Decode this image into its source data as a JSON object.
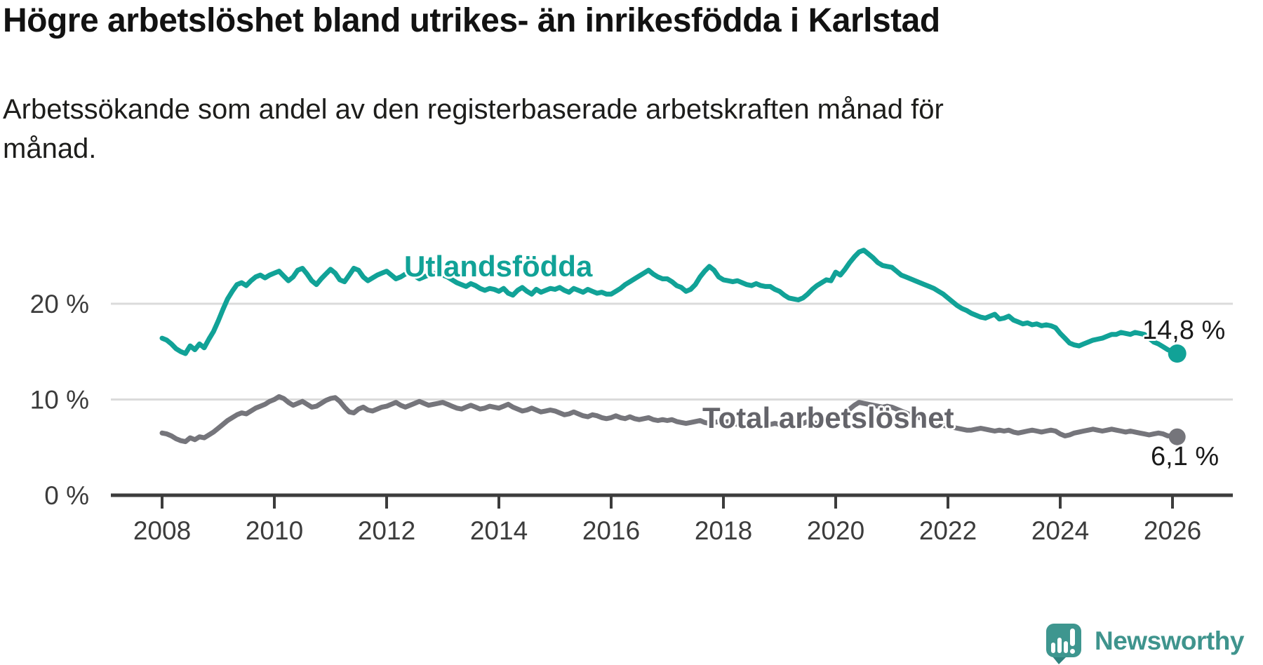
{
  "title": "Högre arbetslöshet bland utrikes- än inrikesfödda i Karlstad",
  "subtitle_line1": "Arbetssökande som andel av den registerbaserade arbetskraften månad för",
  "subtitle_line2": "månad.",
  "chart_data": {
    "type": "line",
    "title": "Högre arbetslöshet bland utrikes- än inrikesfödda i Karlstad",
    "x_unit": "month",
    "x_range": [
      "2008-01",
      "2026-02"
    ],
    "ylim": [
      0,
      26.5
    ],
    "grid": "horizontal-only",
    "grid_color": "#dbdbdb",
    "axis_color": "#3c3c3c",
    "tick_label_color": "#3c3c3c",
    "y_ticks": [
      {
        "value": 0,
        "label": "0 %"
      },
      {
        "value": 10,
        "label": "10 %"
      },
      {
        "value": 20,
        "label": "20 %"
      }
    ],
    "x_ticks": [
      {
        "year": 2008,
        "label": "2008"
      },
      {
        "year": 2010,
        "label": "2010"
      },
      {
        "year": 2012,
        "label": "2012"
      },
      {
        "year": 2014,
        "label": "2014"
      },
      {
        "year": 2016,
        "label": "2016"
      },
      {
        "year": 2018,
        "label": "2018"
      },
      {
        "year": 2020,
        "label": "2020"
      },
      {
        "year": 2022,
        "label": "2022"
      },
      {
        "year": 2024,
        "label": "2024"
      },
      {
        "year": 2026,
        "label": "2026"
      }
    ],
    "series": [
      {
        "name": "Utlandsfödda",
        "color": "#11a297",
        "end_label": "14,8 %",
        "last_value": 14.8,
        "values": [
          16.4,
          16.2,
          15.8,
          15.3,
          15.0,
          14.8,
          15.6,
          15.2,
          15.8,
          15.4,
          16.3,
          17.1,
          18.2,
          19.4,
          20.5,
          21.3,
          22.0,
          22.2,
          21.9,
          22.4,
          22.8,
          23.0,
          22.7,
          23.0,
          23.2,
          23.4,
          22.9,
          22.4,
          22.8,
          23.5,
          23.7,
          23.1,
          22.4,
          22.0,
          22.6,
          23.1,
          23.6,
          23.2,
          22.5,
          22.3,
          23.0,
          23.7,
          23.5,
          22.8,
          22.4,
          22.7,
          23.0,
          23.2,
          23.4,
          23.0,
          22.6,
          22.8,
          23.1,
          23.3,
          22.9,
          22.6,
          22.8,
          23.0,
          23.2,
          23.0,
          23.0,
          22.8,
          22.5,
          22.2,
          22.0,
          21.8,
          22.1,
          21.9,
          21.6,
          21.4,
          21.6,
          21.5,
          21.3,
          21.6,
          21.1,
          20.9,
          21.4,
          21.7,
          21.3,
          21.0,
          21.5,
          21.2,
          21.4,
          21.6,
          21.5,
          21.7,
          21.4,
          21.2,
          21.6,
          21.4,
          21.2,
          21.5,
          21.3,
          21.1,
          21.2,
          21.0,
          21.0,
          21.3,
          21.6,
          22.0,
          22.3,
          22.6,
          22.9,
          23.2,
          23.5,
          23.1,
          22.8,
          22.6,
          22.6,
          22.3,
          21.9,
          21.7,
          21.3,
          21.5,
          22.0,
          22.8,
          23.4,
          23.9,
          23.5,
          22.8,
          22.5,
          22.4,
          22.3,
          22.4,
          22.2,
          22.0,
          21.9,
          22.1,
          21.9,
          21.8,
          21.8,
          21.5,
          21.3,
          20.9,
          20.6,
          20.5,
          20.4,
          20.6,
          21.0,
          21.5,
          21.9,
          22.2,
          22.5,
          22.4,
          23.3,
          23.0,
          23.6,
          24.3,
          24.9,
          25.4,
          25.6,
          25.2,
          24.8,
          24.3,
          24.0,
          23.9,
          23.8,
          23.4,
          23.0,
          22.8,
          22.6,
          22.4,
          22.2,
          22.0,
          21.8,
          21.6,
          21.3,
          21.0,
          20.6,
          20.2,
          19.8,
          19.5,
          19.3,
          19.0,
          18.8,
          18.6,
          18.5,
          18.7,
          18.9,
          18.4,
          18.5,
          18.7,
          18.3,
          18.1,
          17.9,
          18.0,
          17.8,
          17.9,
          17.7,
          17.8,
          17.7,
          17.5,
          16.9,
          16.4,
          15.9,
          15.7,
          15.6,
          15.8,
          16.0,
          16.2,
          16.3,
          16.4,
          16.6,
          16.8,
          16.8,
          17.0,
          16.9,
          16.8,
          17.0,
          16.9,
          16.8,
          16.4,
          16.0,
          15.8,
          15.5,
          15.2,
          15.0,
          14.8
        ]
      },
      {
        "name": "Total arbetslöshet",
        "color": "#75757b",
        "end_label": "6,1 %",
        "last_value": 6.1,
        "values": [
          6.5,
          6.4,
          6.2,
          5.9,
          5.7,
          5.6,
          6.0,
          5.8,
          6.1,
          6.0,
          6.3,
          6.6,
          7.0,
          7.4,
          7.8,
          8.1,
          8.4,
          8.6,
          8.5,
          8.8,
          9.1,
          9.3,
          9.5,
          9.8,
          10.0,
          10.3,
          10.1,
          9.7,
          9.4,
          9.6,
          9.8,
          9.5,
          9.2,
          9.3,
          9.6,
          9.9,
          10.1,
          10.2,
          9.8,
          9.2,
          8.7,
          8.6,
          9.0,
          9.2,
          8.9,
          8.8,
          9.0,
          9.2,
          9.3,
          9.5,
          9.7,
          9.4,
          9.2,
          9.4,
          9.6,
          9.8,
          9.6,
          9.4,
          9.5,
          9.6,
          9.7,
          9.5,
          9.3,
          9.1,
          9.0,
          9.2,
          9.4,
          9.2,
          9.0,
          9.1,
          9.3,
          9.2,
          9.1,
          9.3,
          9.5,
          9.2,
          9.0,
          8.8,
          8.9,
          9.1,
          8.9,
          8.7,
          8.8,
          8.9,
          8.8,
          8.6,
          8.4,
          8.5,
          8.7,
          8.5,
          8.3,
          8.2,
          8.4,
          8.3,
          8.1,
          8.0,
          8.1,
          8.3,
          8.1,
          8.0,
          8.2,
          8.0,
          7.9,
          8.0,
          8.1,
          7.9,
          7.8,
          7.9,
          7.8,
          7.9,
          7.7,
          7.6,
          7.5,
          7.6,
          7.7,
          7.8,
          7.6,
          7.5,
          7.6,
          7.7,
          7.6,
          7.7,
          7.5,
          7.4,
          7.3,
          7.4,
          7.5,
          7.4,
          7.2,
          7.3,
          7.4,
          7.5,
          7.4,
          7.3,
          7.2,
          7.3,
          7.4,
          7.5,
          7.7,
          7.6,
          7.5,
          7.6,
          7.7,
          7.8,
          7.9,
          8.0,
          8.4,
          9.0,
          9.4,
          9.7,
          9.6,
          9.5,
          9.4,
          9.3,
          9.2,
          9.3,
          9.2,
          9.0,
          8.8,
          8.6,
          8.4,
          8.2,
          8.1,
          8.0,
          7.8,
          7.6,
          7.4,
          7.3,
          7.2,
          7.1,
          7.0,
          6.9,
          6.8,
          6.8,
          6.9,
          7.0,
          6.9,
          6.8,
          6.7,
          6.8,
          6.7,
          6.8,
          6.6,
          6.5,
          6.6,
          6.7,
          6.8,
          6.7,
          6.6,
          6.7,
          6.8,
          6.7,
          6.4,
          6.2,
          6.3,
          6.5,
          6.6,
          6.7,
          6.8,
          6.9,
          6.8,
          6.7,
          6.8,
          6.9,
          6.8,
          6.7,
          6.6,
          6.7,
          6.6,
          6.5,
          6.4,
          6.3,
          6.4,
          6.5,
          6.4,
          6.2,
          6.2,
          6.1
        ]
      }
    ]
  },
  "annotations": {
    "foreign_end": "14,8 %",
    "total_end": "6,1 %"
  },
  "series_labels": {
    "foreign": "Utlandsfödda",
    "total": "Total arbetslöshet"
  },
  "logo": {
    "text": "Newsworthy",
    "color": "#3f948d",
    "icon": "newsworthy-speech-bubble-chart-icon"
  }
}
